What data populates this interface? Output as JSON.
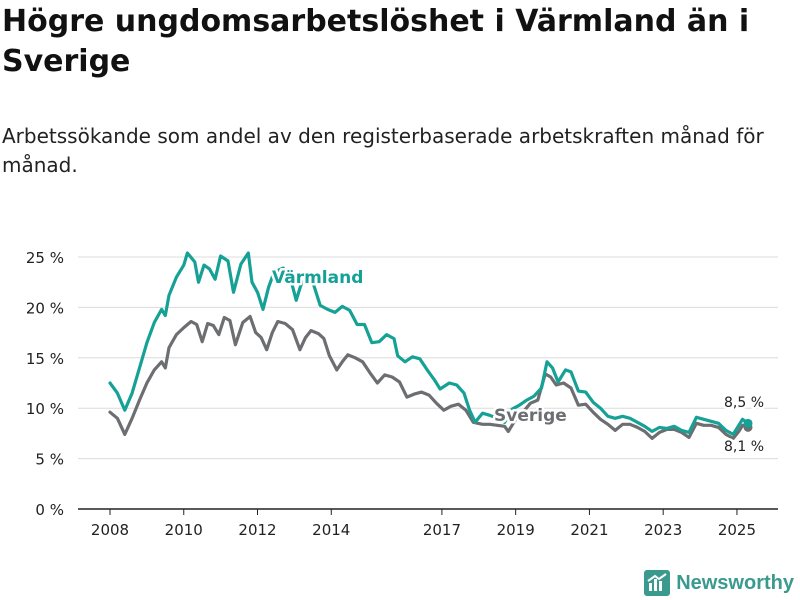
{
  "title": "Högre ungdomsarbetslöshet i Värmland än i Sverige",
  "subtitle": "Arbetssökande som andel av den registerbaserade arbetskraften månad för månad.",
  "brand": "Newsworthy",
  "colors": {
    "varmland": "#16a196",
    "sverige": "#6d6e71",
    "grid": "#dcdcdc",
    "axis": "#222222"
  },
  "chart_data": {
    "type": "line",
    "title": "Högre ungdomsarbetslöshet i Värmland än i Sverige",
    "xlabel": "",
    "ylabel": "",
    "ylim": [
      0,
      25
    ],
    "xlim": [
      2008.0,
      2026.0
    ],
    "y_ticks": [
      0,
      5,
      10,
      15,
      20,
      25
    ],
    "y_tick_labels": [
      "0 %",
      "5 %",
      "10 %",
      "15 %",
      "20 %",
      "25 %"
    ],
    "x_tick_positions": [
      2008,
      2010,
      2012,
      2014,
      2017,
      2019,
      2021,
      2023,
      2025
    ],
    "x_tick_labels": [
      "2008",
      "2010",
      "2012",
      "2014",
      "2017",
      "2019",
      "2021",
      "2023",
      "2025"
    ],
    "series": [
      {
        "name": "Värmland",
        "color": "#16a196",
        "end_label": "8,5 %",
        "points": [
          [
            2008.0,
            12.5
          ],
          [
            2008.2,
            11.5
          ],
          [
            2008.4,
            9.8
          ],
          [
            2008.6,
            11.5
          ],
          [
            2008.8,
            14.0
          ],
          [
            2009.0,
            16.5
          ],
          [
            2009.2,
            18.5
          ],
          [
            2009.4,
            19.8
          ],
          [
            2009.5,
            19.2
          ],
          [
            2009.6,
            21.2
          ],
          [
            2009.8,
            23.0
          ],
          [
            2010.0,
            24.2
          ],
          [
            2010.1,
            25.4
          ],
          [
            2010.3,
            24.5
          ],
          [
            2010.4,
            22.5
          ],
          [
            2010.55,
            24.2
          ],
          [
            2010.7,
            23.8
          ],
          [
            2010.85,
            22.8
          ],
          [
            2011.0,
            25.1
          ],
          [
            2011.2,
            24.6
          ],
          [
            2011.35,
            21.5
          ],
          [
            2011.55,
            24.3
          ],
          [
            2011.75,
            25.4
          ],
          [
            2011.85,
            22.5
          ],
          [
            2012.0,
            21.5
          ],
          [
            2012.15,
            19.8
          ],
          [
            2012.3,
            22.0
          ],
          [
            2012.45,
            23.5
          ],
          [
            2012.7,
            23.9
          ],
          [
            2012.9,
            22.8
          ],
          [
            2013.05,
            20.7
          ],
          [
            2013.2,
            22.5
          ],
          [
            2013.5,
            22.5
          ],
          [
            2013.7,
            20.2
          ],
          [
            2013.9,
            19.8
          ],
          [
            2014.1,
            19.5
          ],
          [
            2014.3,
            20.1
          ],
          [
            2014.5,
            19.7
          ],
          [
            2014.7,
            18.3
          ],
          [
            2014.9,
            18.3
          ],
          [
            2015.1,
            16.5
          ],
          [
            2015.3,
            16.6
          ],
          [
            2015.5,
            17.3
          ],
          [
            2015.7,
            16.9
          ],
          [
            2015.8,
            15.2
          ],
          [
            2016.0,
            14.6
          ],
          [
            2016.2,
            15.1
          ],
          [
            2016.4,
            14.9
          ],
          [
            2016.6,
            13.8
          ],
          [
            2016.8,
            12.8
          ],
          [
            2016.95,
            11.9
          ],
          [
            2017.2,
            12.5
          ],
          [
            2017.4,
            12.3
          ],
          [
            2017.6,
            11.5
          ],
          [
            2017.75,
            9.8
          ],
          [
            2017.9,
            8.6
          ],
          [
            2018.1,
            9.5
          ],
          [
            2018.3,
            9.3
          ],
          [
            2018.5,
            9.0
          ],
          [
            2018.7,
            8.6
          ],
          [
            2018.9,
            9.9
          ],
          [
            2019.1,
            10.3
          ],
          [
            2019.3,
            10.8
          ],
          [
            2019.5,
            11.2
          ],
          [
            2019.7,
            12.0
          ],
          [
            2019.85,
            14.6
          ],
          [
            2020.0,
            14.0
          ],
          [
            2020.15,
            12.6
          ],
          [
            2020.35,
            13.8
          ],
          [
            2020.5,
            13.6
          ],
          [
            2020.7,
            11.7
          ],
          [
            2020.9,
            11.6
          ],
          [
            2021.1,
            10.6
          ],
          [
            2021.3,
            10.0
          ],
          [
            2021.5,
            9.2
          ],
          [
            2021.7,
            9.0
          ],
          [
            2021.9,
            9.2
          ],
          [
            2022.1,
            9.0
          ],
          [
            2022.3,
            8.6
          ],
          [
            2022.5,
            8.2
          ],
          [
            2022.7,
            7.7
          ],
          [
            2022.9,
            8.1
          ],
          [
            2023.1,
            8.0
          ],
          [
            2023.3,
            8.2
          ],
          [
            2023.5,
            7.8
          ],
          [
            2023.7,
            7.6
          ],
          [
            2023.9,
            9.1
          ],
          [
            2024.1,
            8.9
          ],
          [
            2024.3,
            8.7
          ],
          [
            2024.5,
            8.5
          ],
          [
            2024.7,
            7.8
          ],
          [
            2024.9,
            7.4
          ],
          [
            2025.05,
            8.3
          ],
          [
            2025.15,
            8.9
          ],
          [
            2025.3,
            8.5
          ]
        ]
      },
      {
        "name": "Sverige",
        "color": "#6d6e71",
        "end_label": "8,1 %",
        "points": [
          [
            2008.0,
            9.6
          ],
          [
            2008.2,
            9.0
          ],
          [
            2008.4,
            7.4
          ],
          [
            2008.6,
            9.0
          ],
          [
            2008.8,
            10.8
          ],
          [
            2009.0,
            12.5
          ],
          [
            2009.2,
            13.8
          ],
          [
            2009.4,
            14.6
          ],
          [
            2009.5,
            14.0
          ],
          [
            2009.6,
            16.0
          ],
          [
            2009.8,
            17.3
          ],
          [
            2010.0,
            18.0
          ],
          [
            2010.2,
            18.6
          ],
          [
            2010.35,
            18.3
          ],
          [
            2010.5,
            16.6
          ],
          [
            2010.65,
            18.4
          ],
          [
            2010.8,
            18.2
          ],
          [
            2010.95,
            17.3
          ],
          [
            2011.1,
            19.0
          ],
          [
            2011.25,
            18.7
          ],
          [
            2011.4,
            16.3
          ],
          [
            2011.6,
            18.5
          ],
          [
            2011.8,
            19.1
          ],
          [
            2011.95,
            17.5
          ],
          [
            2012.1,
            17.0
          ],
          [
            2012.25,
            15.8
          ],
          [
            2012.4,
            17.5
          ],
          [
            2012.55,
            18.6
          ],
          [
            2012.75,
            18.4
          ],
          [
            2012.95,
            17.8
          ],
          [
            2013.15,
            15.8
          ],
          [
            2013.3,
            17.0
          ],
          [
            2013.45,
            17.7
          ],
          [
            2013.65,
            17.4
          ],
          [
            2013.8,
            16.9
          ],
          [
            2013.95,
            15.2
          ],
          [
            2014.15,
            13.8
          ],
          [
            2014.3,
            14.6
          ],
          [
            2014.45,
            15.3
          ],
          [
            2014.65,
            15.0
          ],
          [
            2014.85,
            14.6
          ],
          [
            2015.05,
            13.5
          ],
          [
            2015.25,
            12.5
          ],
          [
            2015.45,
            13.3
          ],
          [
            2015.65,
            13.1
          ],
          [
            2015.85,
            12.6
          ],
          [
            2016.05,
            11.1
          ],
          [
            2016.25,
            11.4
          ],
          [
            2016.45,
            11.6
          ],
          [
            2016.65,
            11.3
          ],
          [
            2016.85,
            10.5
          ],
          [
            2017.05,
            9.8
          ],
          [
            2017.25,
            10.2
          ],
          [
            2017.45,
            10.4
          ],
          [
            2017.65,
            9.8
          ],
          [
            2017.85,
            8.6
          ],
          [
            2018.1,
            8.4
          ],
          [
            2018.3,
            8.4
          ],
          [
            2018.5,
            8.3
          ],
          [
            2018.7,
            8.2
          ],
          [
            2018.8,
            7.7
          ],
          [
            2019.0,
            8.9
          ],
          [
            2019.2,
            9.6
          ],
          [
            2019.4,
            10.5
          ],
          [
            2019.6,
            10.8
          ],
          [
            2019.8,
            13.4
          ],
          [
            2019.95,
            13.1
          ],
          [
            2020.1,
            12.3
          ],
          [
            2020.3,
            12.5
          ],
          [
            2020.5,
            12.0
          ],
          [
            2020.7,
            10.3
          ],
          [
            2020.9,
            10.4
          ],
          [
            2021.1,
            9.6
          ],
          [
            2021.3,
            8.9
          ],
          [
            2021.5,
            8.4
          ],
          [
            2021.7,
            7.8
          ],
          [
            2021.9,
            8.4
          ],
          [
            2022.1,
            8.4
          ],
          [
            2022.3,
            8.1
          ],
          [
            2022.5,
            7.7
          ],
          [
            2022.7,
            7.0
          ],
          [
            2022.9,
            7.6
          ],
          [
            2023.1,
            7.9
          ],
          [
            2023.3,
            7.9
          ],
          [
            2023.5,
            7.6
          ],
          [
            2023.7,
            7.1
          ],
          [
            2023.9,
            8.5
          ],
          [
            2024.1,
            8.3
          ],
          [
            2024.3,
            8.3
          ],
          [
            2024.5,
            8.1
          ],
          [
            2024.7,
            7.4
          ],
          [
            2024.9,
            7.0
          ],
          [
            2025.05,
            7.7
          ],
          [
            2025.15,
            8.3
          ],
          [
            2025.3,
            8.1
          ]
        ]
      }
    ]
  }
}
